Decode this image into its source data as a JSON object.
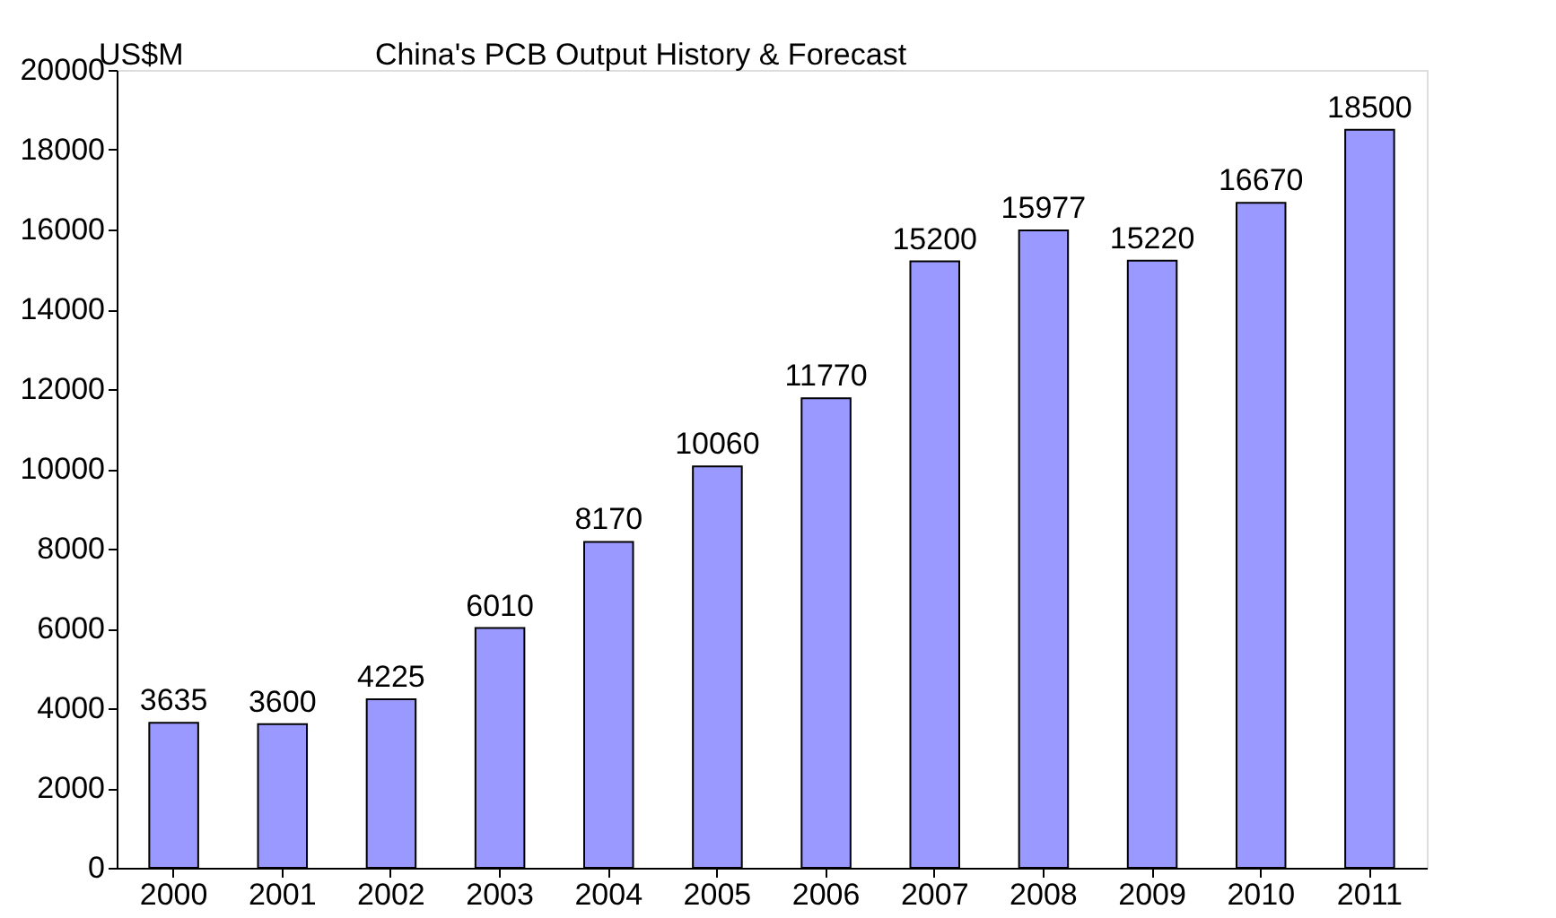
{
  "chart_data": {
    "type": "bar",
    "title": "China's PCB Output History & Forecast",
    "ylabel": "US$M",
    "categories": [
      "2000",
      "2001",
      "2002",
      "2003",
      "2004",
      "2005",
      "2006",
      "2007",
      "2008",
      "2009",
      "2010",
      "2011"
    ],
    "values": [
      3635,
      3600,
      4225,
      6010,
      8170,
      10060,
      11770,
      15200,
      15977,
      15220,
      16670,
      18500
    ],
    "color": "#9999ff",
    "ylim": [
      0,
      20000
    ],
    "yticks": [
      0,
      2000,
      4000,
      6000,
      8000,
      10000,
      12000,
      14000,
      16000,
      18000,
      20000
    ],
    "grid": false,
    "data_labels": true
  }
}
